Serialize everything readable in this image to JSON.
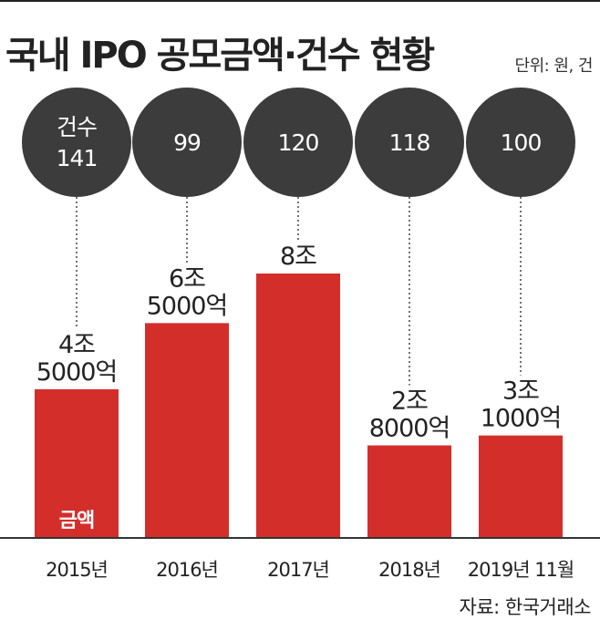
{
  "header": {
    "title": "국내 IPO 공모금액·건수 현황",
    "unit": "단위: 원, 건"
  },
  "source": "자료: 한국거래소",
  "chart_data": {
    "type": "bar",
    "categories": [
      "2015년",
      "2016년",
      "2017년",
      "2018년",
      "2019년 11월"
    ],
    "series": [
      {
        "name": "금액",
        "unit": "원",
        "values": [
          4500000000000,
          6500000000000,
          8000000000000,
          2800000000000,
          3100000000000
        ],
        "labels": [
          [
            "4조",
            "5000억"
          ],
          [
            "6조",
            "5000억"
          ],
          [
            "8조"
          ],
          [
            "2조",
            "8000억"
          ],
          [
            "3조",
            "1000억"
          ]
        ],
        "color": "#d42e2a"
      },
      {
        "name": "건수",
        "unit": "건",
        "values": [
          141,
          99,
          120,
          118,
          100
        ],
        "color": "#3c3c3c"
      }
    ],
    "ylim": [
      0,
      8000000000000
    ],
    "grid": false
  }
}
